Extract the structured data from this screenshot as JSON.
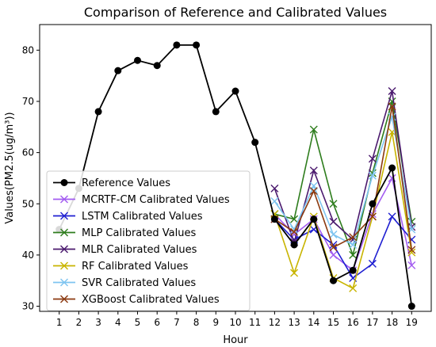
{
  "chart_data": {
    "type": "line",
    "title": "Comparison of Reference and Calibrated Values",
    "xlabel": "Hour",
    "ylabel": "Values(PM2.5(ug/m³))",
    "x": [
      1,
      2,
      3,
      4,
      5,
      6,
      7,
      8,
      9,
      10,
      11,
      12,
      13,
      14,
      15,
      16,
      17,
      18,
      19
    ],
    "xlim": [
      0,
      20
    ],
    "ylim": [
      29,
      85
    ],
    "yticks": [
      30,
      40,
      50,
      60,
      70,
      80
    ],
    "grid": false,
    "legend_position": "lower-left",
    "series": [
      {
        "name": "Reference Values",
        "color": "#000000",
        "marker": "circle",
        "x": [
          1,
          2,
          3,
          4,
          5,
          6,
          7,
          8,
          9,
          10,
          11,
          12,
          13,
          14,
          15,
          16,
          17,
          18,
          19
        ],
        "values": [
          45,
          53,
          68,
          76,
          78,
          77,
          81,
          81,
          68,
          72,
          62,
          47,
          42,
          47,
          35,
          37,
          50,
          57,
          30
        ]
      },
      {
        "name": "MCRTF-CM Calibrated Values",
        "color": "#a35cf0",
        "marker": "x",
        "x": [
          12,
          13,
          14,
          15,
          16,
          17,
          18,
          19
        ],
        "values": [
          48,
          44,
          47,
          40,
          37,
          48,
          55,
          38
        ]
      },
      {
        "name": "LSTM Calibrated Values",
        "color": "#1f1fd1",
        "marker": "x",
        "x": [
          12,
          13,
          14,
          15,
          16,
          17,
          18,
          19
        ],
        "values": [
          47,
          43,
          45,
          42,
          35.5,
          38.3,
          47.5,
          43
        ]
      },
      {
        "name": "MLP Calibrated Values",
        "color": "#2e7d1d",
        "marker": "x",
        "x": [
          12,
          13,
          14,
          15,
          16,
          17,
          18,
          19
        ],
        "values": [
          48,
          47,
          64.5,
          50,
          40,
          56,
          70,
          46.5
        ]
      },
      {
        "name": "MLR Calibrated Values",
        "color": "#4b1a6e",
        "marker": "x",
        "x": [
          12,
          13,
          14,
          15,
          16,
          17,
          18,
          19
        ],
        "values": [
          53,
          42.5,
          56.5,
          46.5,
          43,
          58.8,
          72,
          45.5
        ]
      },
      {
        "name": "RF Calibrated Values",
        "color": "#c8b400",
        "marker": "x",
        "x": [
          12,
          13,
          14,
          15,
          16,
          17,
          18,
          19
        ],
        "values": [
          48,
          36.5,
          47.5,
          35.5,
          33.5,
          47.5,
          64,
          40.5
        ]
      },
      {
        "name": "SVR Calibrated Values",
        "color": "#7ec4f0",
        "marker": "x",
        "x": [
          12,
          13,
          14,
          15,
          16,
          17,
          18,
          19
        ],
        "values": [
          50.5,
          45,
          53.5,
          44,
          42,
          55.5,
          67,
          45
        ]
      },
      {
        "name": "XGBoost Calibrated Values",
        "color": "#8b3a10",
        "marker": "x",
        "x": [
          12,
          13,
          14,
          15,
          16,
          17,
          18,
          19
        ],
        "values": [
          47,
          44.5,
          52.5,
          41.5,
          43.5,
          47.5,
          69,
          41
        ]
      }
    ]
  }
}
